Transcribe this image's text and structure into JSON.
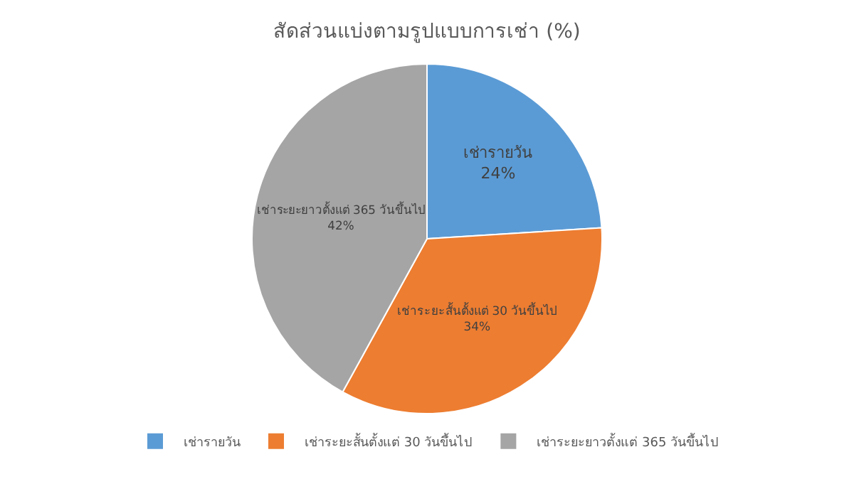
{
  "chart_data": {
    "type": "pie",
    "title": "สัดส่วนแบ่งตามรูปแบบการเช่า (%)",
    "categories": [
      "เช่ารายวัน",
      "เช่าระยะสั้นตั้งแต่ 30 วันขึ้นไป",
      "เช่าระยะยาวตั้งแต่ 365 วันขึ้นไป"
    ],
    "values": [
      24,
      34,
      42
    ],
    "value_labels": [
      "24%",
      "34%",
      "42%"
    ],
    "colors": [
      "#5b9bd5",
      "#ed7d31",
      "#a5a5a5"
    ],
    "legend": "bottom"
  }
}
